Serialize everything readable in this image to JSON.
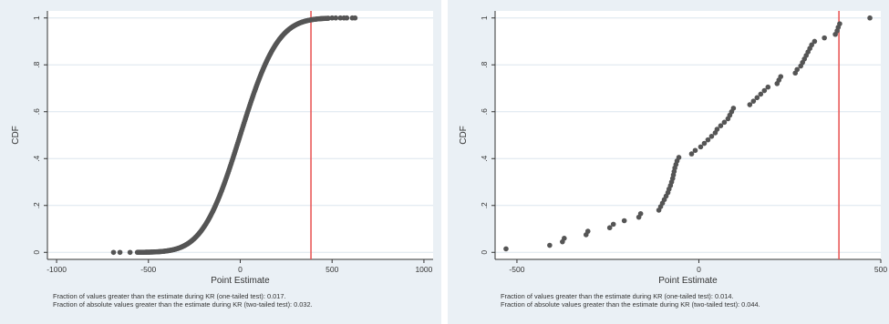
{
  "colors": {
    "panel_bg": "#eaf0f5",
    "plot_bg": "#ffffff",
    "grid": "#dce6ee",
    "axis": "#333333",
    "marker": "#555555",
    "reference_line": "#e8504f"
  },
  "chart_data": [
    {
      "type": "scatter",
      "xlabel": "Point Estimate",
      "ylabel": "CDF",
      "xlim": [
        -1050,
        1050
      ],
      "ylim": [
        -0.03,
        1.03
      ],
      "xticks": [
        -1000,
        -500,
        0,
        500,
        1000
      ],
      "xtick_labels": [
        "-1000",
        "-500",
        "0",
        "500",
        "1000"
      ],
      "yticks": [
        0,
        0.2,
        0.4,
        0.6,
        0.8,
        1.0
      ],
      "ytick_labels": [
        "0",
        ".2",
        ".4",
        ".6",
        ".8",
        "1"
      ],
      "grid": true,
      "reference_line_x": 385,
      "distribution": {
        "shape": "empirical_cdf_normal",
        "mean": 0,
        "sd": 160,
        "x_range": [
          -560,
          480
        ],
        "n_points": 300
      },
      "outliers": [
        {
          "x": -690,
          "y": 0.0
        },
        {
          "x": -655,
          "y": 0.0
        },
        {
          "x": -600,
          "y": 0.0
        },
        {
          "x": 500,
          "y": 1.0
        },
        {
          "x": 520,
          "y": 1.0
        },
        {
          "x": 545,
          "y": 1.0
        },
        {
          "x": 565,
          "y": 1.0
        },
        {
          "x": 580,
          "y": 1.0
        },
        {
          "x": 610,
          "y": 1.0
        },
        {
          "x": 625,
          "y": 1.0
        }
      ],
      "notes": [
        "Fraction of values greater than the estimate during KR (one-tailed test): 0.017.",
        "Fraction of absolute values greater than the estimate during KR (two-tailed test): 0.032."
      ]
    },
    {
      "type": "scatter",
      "xlabel": "Point Estimate",
      "ylabel": "CDF",
      "xlim": [
        -560,
        500
      ],
      "ylim": [
        -0.03,
        1.03
      ],
      "xticks": [
        -500,
        0,
        500
      ],
      "xtick_labels": [
        "-500",
        "0",
        "500"
      ],
      "yticks": [
        0,
        0.2,
        0.4,
        0.6,
        0.8,
        1.0
      ],
      "ytick_labels": [
        "0",
        ".2",
        ".4",
        ".6",
        ".8",
        "1"
      ],
      "grid": true,
      "reference_line_x": 385,
      "points": [
        {
          "x": -530,
          "y": 0.015
        },
        {
          "x": -410,
          "y": 0.03
        },
        {
          "x": -375,
          "y": 0.045
        },
        {
          "x": -370,
          "y": 0.06
        },
        {
          "x": -310,
          "y": 0.075
        },
        {
          "x": -305,
          "y": 0.09
        },
        {
          "x": -245,
          "y": 0.105
        },
        {
          "x": -235,
          "y": 0.12
        },
        {
          "x": -205,
          "y": 0.135
        },
        {
          "x": -165,
          "y": 0.15
        },
        {
          "x": -160,
          "y": 0.165
        },
        {
          "x": -110,
          "y": 0.18
        },
        {
          "x": -105,
          "y": 0.195
        },
        {
          "x": -100,
          "y": 0.21
        },
        {
          "x": -95,
          "y": 0.225
        },
        {
          "x": -90,
          "y": 0.24
        },
        {
          "x": -85,
          "y": 0.255
        },
        {
          "x": -82,
          "y": 0.27
        },
        {
          "x": -78,
          "y": 0.285
        },
        {
          "x": -75,
          "y": 0.3
        },
        {
          "x": -72,
          "y": 0.315
        },
        {
          "x": -70,
          "y": 0.33
        },
        {
          "x": -68,
          "y": 0.345
        },
        {
          "x": -66,
          "y": 0.36
        },
        {
          "x": -63,
          "y": 0.375
        },
        {
          "x": -60,
          "y": 0.39
        },
        {
          "x": -55,
          "y": 0.405
        },
        {
          "x": -20,
          "y": 0.42
        },
        {
          "x": -10,
          "y": 0.435
        },
        {
          "x": 5,
          "y": 0.45
        },
        {
          "x": 15,
          "y": 0.465
        },
        {
          "x": 25,
          "y": 0.48
        },
        {
          "x": 35,
          "y": 0.495
        },
        {
          "x": 45,
          "y": 0.51
        },
        {
          "x": 50,
          "y": 0.525
        },
        {
          "x": 60,
          "y": 0.54
        },
        {
          "x": 70,
          "y": 0.555
        },
        {
          "x": 80,
          "y": 0.57
        },
        {
          "x": 85,
          "y": 0.585
        },
        {
          "x": 90,
          "y": 0.6
        },
        {
          "x": 95,
          "y": 0.615
        },
        {
          "x": 140,
          "y": 0.63
        },
        {
          "x": 150,
          "y": 0.645
        },
        {
          "x": 160,
          "y": 0.66
        },
        {
          "x": 170,
          "y": 0.675
        },
        {
          "x": 180,
          "y": 0.69
        },
        {
          "x": 190,
          "y": 0.705
        },
        {
          "x": 215,
          "y": 0.72
        },
        {
          "x": 220,
          "y": 0.735
        },
        {
          "x": 225,
          "y": 0.75
        },
        {
          "x": 265,
          "y": 0.765
        },
        {
          "x": 270,
          "y": 0.78
        },
        {
          "x": 280,
          "y": 0.795
        },
        {
          "x": 285,
          "y": 0.81
        },
        {
          "x": 290,
          "y": 0.825
        },
        {
          "x": 295,
          "y": 0.84
        },
        {
          "x": 300,
          "y": 0.855
        },
        {
          "x": 305,
          "y": 0.87
        },
        {
          "x": 310,
          "y": 0.885
        },
        {
          "x": 318,
          "y": 0.9
        },
        {
          "x": 345,
          "y": 0.915
        },
        {
          "x": 375,
          "y": 0.93
        },
        {
          "x": 380,
          "y": 0.945
        },
        {
          "x": 383,
          "y": 0.96
        },
        {
          "x": 387,
          "y": 0.975
        },
        {
          "x": 470,
          "y": 1.0
        }
      ],
      "notes": [
        "Fraction of values greater than the estimate during KR (one-tailed test): 0.014.",
        "Fraction of absolute values greater than the estimate during KR (two-tailed test): 0.044."
      ]
    }
  ]
}
